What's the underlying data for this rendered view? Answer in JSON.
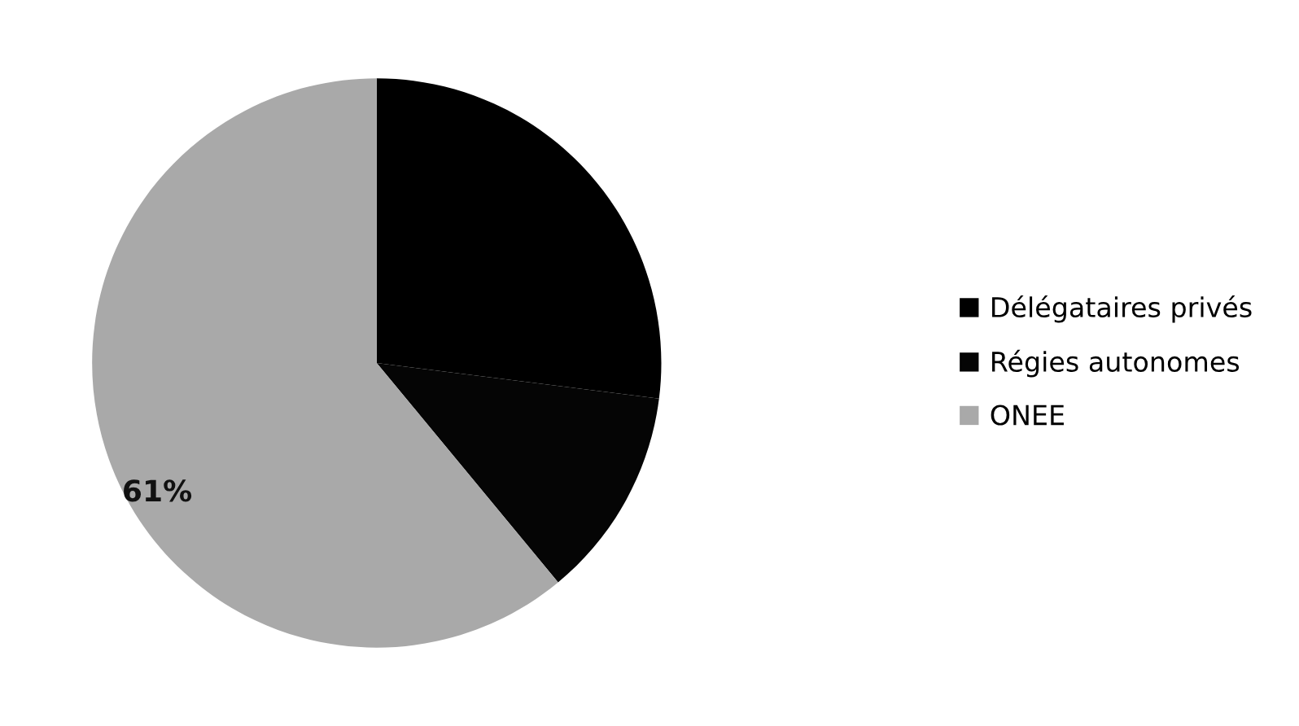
{
  "chart_data": {
    "type": "pie",
    "categories": [
      "Délégataires privés",
      "Régies autonomes",
      "ONEE"
    ],
    "values": [
      27,
      12,
      61
    ],
    "colors": [
      "#000000",
      "#050505",
      "#a9a9a9"
    ],
    "value_labels": [
      null,
      null,
      "61%"
    ],
    "legend": "right"
  }
}
